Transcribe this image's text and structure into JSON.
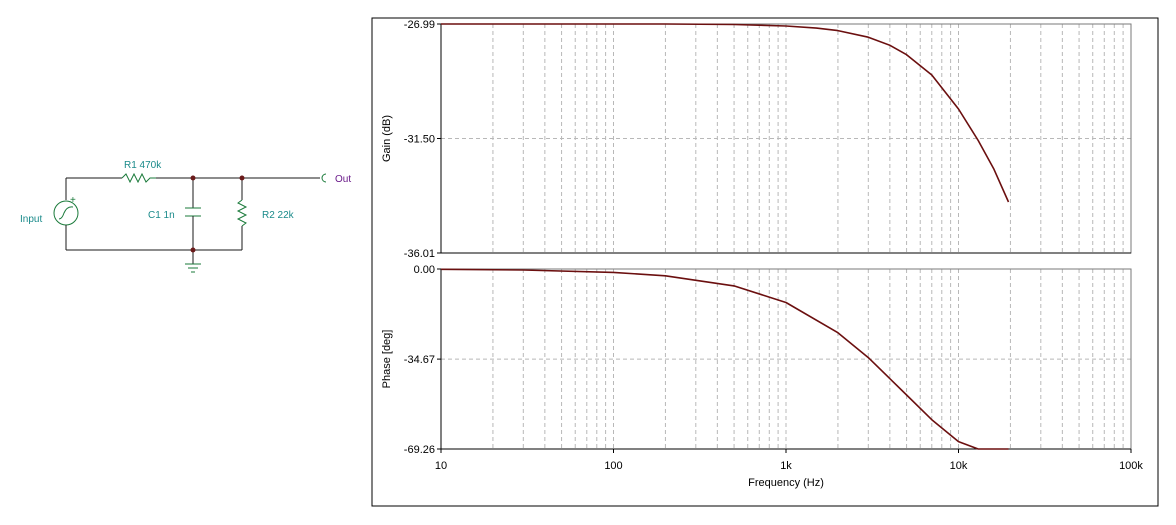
{
  "colors": {
    "wire": "#1a1a1a",
    "component": "#1a7a3a",
    "label": "#1a8a8a",
    "out_label": "#6a1a8a",
    "junction": "#6a1a1a",
    "curve": "#6b0f0f",
    "grid": "#b8b8b8"
  },
  "schematic": {
    "input_label": "Input",
    "r1_label": "R1 470k",
    "c1_label": "C1 1n",
    "r2_label": "R2 22k",
    "out_label": "Out"
  },
  "chart_data": [
    {
      "type": "line",
      "title": "",
      "xlabel": "",
      "ylabel": "Gain (dB)",
      "xscale": "log",
      "xlim": [
        10,
        100000
      ],
      "ylim": [
        -36.01,
        -26.99
      ],
      "yticks": [
        -26.99,
        -31.5,
        -36.01
      ],
      "ytick_labels": [
        "-26.99",
        "-31.50",
        "-36.01"
      ],
      "grid": true,
      "series": [
        {
          "x": [
            10,
            20,
            50,
            100,
            200,
            500,
            1000,
            1500,
            2000,
            3000,
            4000,
            5000,
            7000,
            10000,
            13000,
            16000,
            19500
          ],
          "y": [
            -26.99,
            -26.99,
            -26.99,
            -26.99,
            -26.99,
            -27.01,
            -27.07,
            -27.15,
            -27.25,
            -27.51,
            -27.83,
            -28.2,
            -29.0,
            -30.34,
            -31.58,
            -32.69,
            -34.0
          ]
        }
      ]
    },
    {
      "type": "line",
      "title": "",
      "xlabel": "Frequency (Hz)",
      "ylabel": "Phase [deg]",
      "xscale": "log",
      "xlim": [
        10,
        100000
      ],
      "ylim": [
        -69.26,
        0.0
      ],
      "yticks": [
        0.0,
        -34.67,
        -69.26
      ],
      "ytick_labels": [
        "0.00",
        "-34.67",
        "-69.26"
      ],
      "xticks": [
        10,
        100,
        1000,
        10000,
        100000
      ],
      "xtick_labels": [
        "10",
        "100",
        "1k",
        "10k",
        "100k"
      ],
      "grid": true,
      "series": [
        {
          "x": [
            10,
            30,
            100,
            200,
            500,
            1000,
            2000,
            3000,
            5000,
            7000,
            10000,
            13000,
            16000,
            19500
          ],
          "y": [
            -0.13,
            -0.4,
            -1.3,
            -2.6,
            -6.5,
            -12.9,
            -24.5,
            -34.1,
            -48.5,
            -58.0,
            -66.4,
            -71.3,
            -74.0,
            -69.26
          ]
        }
      ]
    }
  ]
}
